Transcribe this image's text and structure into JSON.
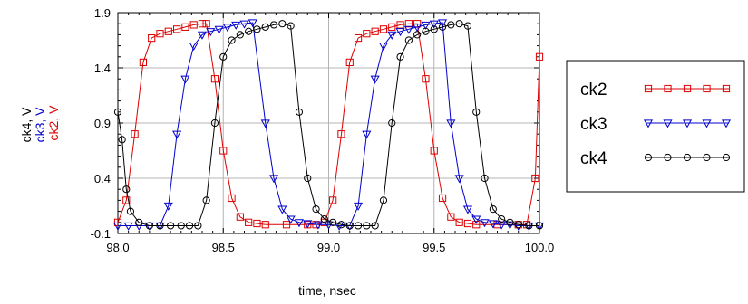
{
  "chart_data": {
    "type": "line",
    "xlabel": "time, nsec",
    "ylabel_parts": [
      {
        "text": "ck4, V",
        "color": "#000000"
      },
      {
        "text": "ck3, V",
        "color": "#0000cc"
      },
      {
        "text": "ck2, V",
        "color": "#dd0000"
      }
    ],
    "xlim": [
      98.0,
      100.0
    ],
    "ylim": [
      -0.1,
      1.9
    ],
    "xticks": [
      98.0,
      98.5,
      99.0,
      99.5,
      100.0
    ],
    "xtick_labels": [
      "98.0",
      "98.5",
      "99.0",
      "99.5",
      "100.0"
    ],
    "yticks": [
      -0.1,
      0.4,
      0.9,
      1.4,
      1.9
    ],
    "ytick_labels": [
      "-0.1",
      "0.4",
      "0.9",
      "1.4",
      "1.9"
    ],
    "grid": true,
    "legend_position": "right",
    "series": [
      {
        "name": "ck2",
        "color": "#dd0000",
        "marker": "square",
        "x": [
          98.0,
          98.04,
          98.08,
          98.12,
          98.16,
          98.2,
          98.24,
          98.28,
          98.32,
          98.36,
          98.4,
          98.42,
          98.46,
          98.5,
          98.54,
          98.58,
          98.62,
          98.66,
          98.7,
          98.8,
          98.9,
          98.94,
          98.98,
          99.02,
          99.06,
          99.1,
          99.14,
          99.18,
          99.22,
          99.26,
          99.3,
          99.34,
          99.38,
          99.42,
          99.46,
          99.5,
          99.54,
          99.58,
          99.62,
          99.66,
          99.7,
          99.8,
          99.9,
          99.94,
          99.98,
          100.0
        ],
        "y": [
          0.0,
          0.2,
          0.8,
          1.45,
          1.67,
          1.71,
          1.73,
          1.75,
          1.77,
          1.79,
          1.8,
          1.8,
          1.3,
          0.65,
          0.22,
          0.05,
          0.0,
          -0.01,
          -0.02,
          -0.02,
          -0.02,
          -0.02,
          0.0,
          0.2,
          0.8,
          1.45,
          1.67,
          1.71,
          1.73,
          1.75,
          1.77,
          1.79,
          1.8,
          1.8,
          1.3,
          0.65,
          0.22,
          0.05,
          0.0,
          -0.01,
          -0.02,
          -0.02,
          -0.02,
          -0.02,
          0.4,
          1.5
        ]
      },
      {
        "name": "ck3",
        "color": "#0000cc",
        "marker": "triangle-down",
        "x": [
          98.0,
          98.05,
          98.1,
          98.15,
          98.2,
          98.24,
          98.28,
          98.32,
          98.36,
          98.4,
          98.44,
          98.48,
          98.52,
          98.56,
          98.6,
          98.64,
          98.7,
          98.74,
          98.78,
          98.82,
          98.86,
          98.9,
          98.95,
          99.0,
          99.05,
          99.1,
          99.14,
          99.18,
          99.22,
          99.26,
          99.3,
          99.34,
          99.38,
          99.42,
          99.46,
          99.5,
          99.54,
          99.58,
          99.62,
          99.66,
          99.7,
          99.74,
          99.78,
          99.82,
          99.86,
          99.9,
          99.95,
          100.0
        ],
        "y": [
          -0.03,
          -0.03,
          -0.03,
          -0.03,
          -0.03,
          0.15,
          0.8,
          1.3,
          1.6,
          1.7,
          1.73,
          1.75,
          1.77,
          1.79,
          1.8,
          1.81,
          0.9,
          0.4,
          0.12,
          0.03,
          0.0,
          -0.01,
          -0.02,
          -0.02,
          -0.03,
          -0.03,
          0.15,
          0.8,
          1.3,
          1.6,
          1.7,
          1.73,
          1.75,
          1.77,
          1.79,
          1.8,
          1.81,
          0.9,
          0.4,
          0.12,
          0.03,
          0.0,
          -0.01,
          -0.02,
          -0.02,
          -0.03,
          -0.03,
          -0.03
        ]
      },
      {
        "name": "ck4",
        "color": "#000000",
        "marker": "circle",
        "x": [
          98.0,
          98.02,
          98.04,
          98.06,
          98.1,
          98.15,
          98.2,
          98.25,
          98.3,
          98.34,
          98.38,
          98.42,
          98.46,
          98.5,
          98.54,
          98.58,
          98.62,
          98.66,
          98.7,
          98.74,
          98.78,
          98.82,
          98.86,
          98.9,
          98.94,
          98.98,
          99.02,
          99.06,
          99.1,
          99.14,
          99.18,
          99.22,
          99.26,
          99.3,
          99.34,
          99.38,
          99.42,
          99.46,
          99.5,
          99.54,
          99.58,
          99.62,
          99.66,
          99.7,
          99.74,
          99.78,
          99.82,
          99.86,
          99.9,
          99.95,
          100.0
        ],
        "y": [
          1.0,
          0.75,
          0.3,
          0.1,
          0.0,
          -0.03,
          -0.03,
          -0.03,
          -0.03,
          -0.03,
          -0.03,
          0.2,
          0.9,
          1.5,
          1.65,
          1.7,
          1.73,
          1.75,
          1.77,
          1.79,
          1.8,
          1.78,
          1.0,
          0.4,
          0.12,
          0.03,
          0.0,
          -0.02,
          -0.03,
          -0.03,
          -0.03,
          -0.03,
          0.2,
          0.9,
          1.5,
          1.65,
          1.7,
          1.73,
          1.75,
          1.77,
          1.79,
          1.8,
          1.78,
          1.0,
          0.4,
          0.12,
          0.03,
          0.0,
          -0.02,
          -0.03,
          -0.03
        ]
      }
    ]
  }
}
